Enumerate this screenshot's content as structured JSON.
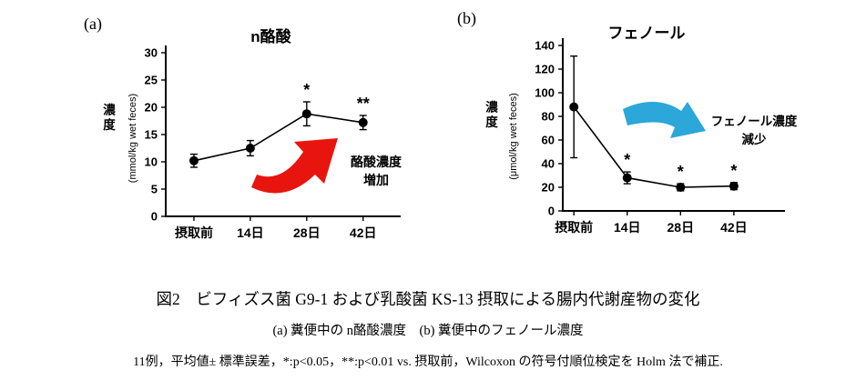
{
  "chart_data": [
    {
      "type": "line",
      "panel_label": "(a)",
      "title": "n酪酸",
      "ylabel": "濃度",
      "ylabel_unit": "(mmol/kg wet feces)",
      "ylim": [
        0,
        30
      ],
      "ytick_step": 5,
      "grid": false,
      "categories": [
        "摂取前",
        "14日",
        "28日",
        "42日"
      ],
      "series": [
        {
          "name": "n酪酸濃度",
          "values": [
            10.2,
            12.5,
            18.8,
            17.2
          ],
          "errors": [
            1.2,
            1.4,
            2.2,
            1.3
          ]
        }
      ],
      "significance": [
        "",
        "",
        "*",
        "**"
      ],
      "annotation": {
        "line1": "酪酸濃度",
        "line2": "増加",
        "arrow_color": "#e8150f",
        "arrow_direction": "up-right"
      }
    },
    {
      "type": "line",
      "panel_label": "(b)",
      "title": "フェノール",
      "ylabel": "濃度",
      "ylabel_unit": "(μmol/kg wet feces)",
      "ylim": [
        0,
        140
      ],
      "ytick_step": 20,
      "grid": false,
      "categories": [
        "摂取前",
        "14日",
        "28日",
        "42日"
      ],
      "series": [
        {
          "name": "フェノール濃度",
          "values": [
            88,
            28,
            20,
            21
          ],
          "errors": [
            43,
            5,
            3,
            3
          ]
        }
      ],
      "significance": [
        "",
        "*",
        "*",
        "*"
      ],
      "annotation": {
        "line1": "フェノール濃度",
        "line2": "減少",
        "arrow_color": "#2ba7d9",
        "arrow_direction": "down-right"
      }
    }
  ],
  "caption": {
    "line1": "図2　ビフィズス菌 G9-1 および乳酸菌 KS-13 摂取による腸内代謝産物の変化",
    "line2": "(a) 糞便中の n酪酸濃度　(b) 糞便中のフェノール濃度",
    "line3": "11例，平均値± 標準誤差，*:p<0.05，**:p<0.01 vs. 摂取前，Wilcoxon の符号付順位検定を Holm 法で補正."
  }
}
